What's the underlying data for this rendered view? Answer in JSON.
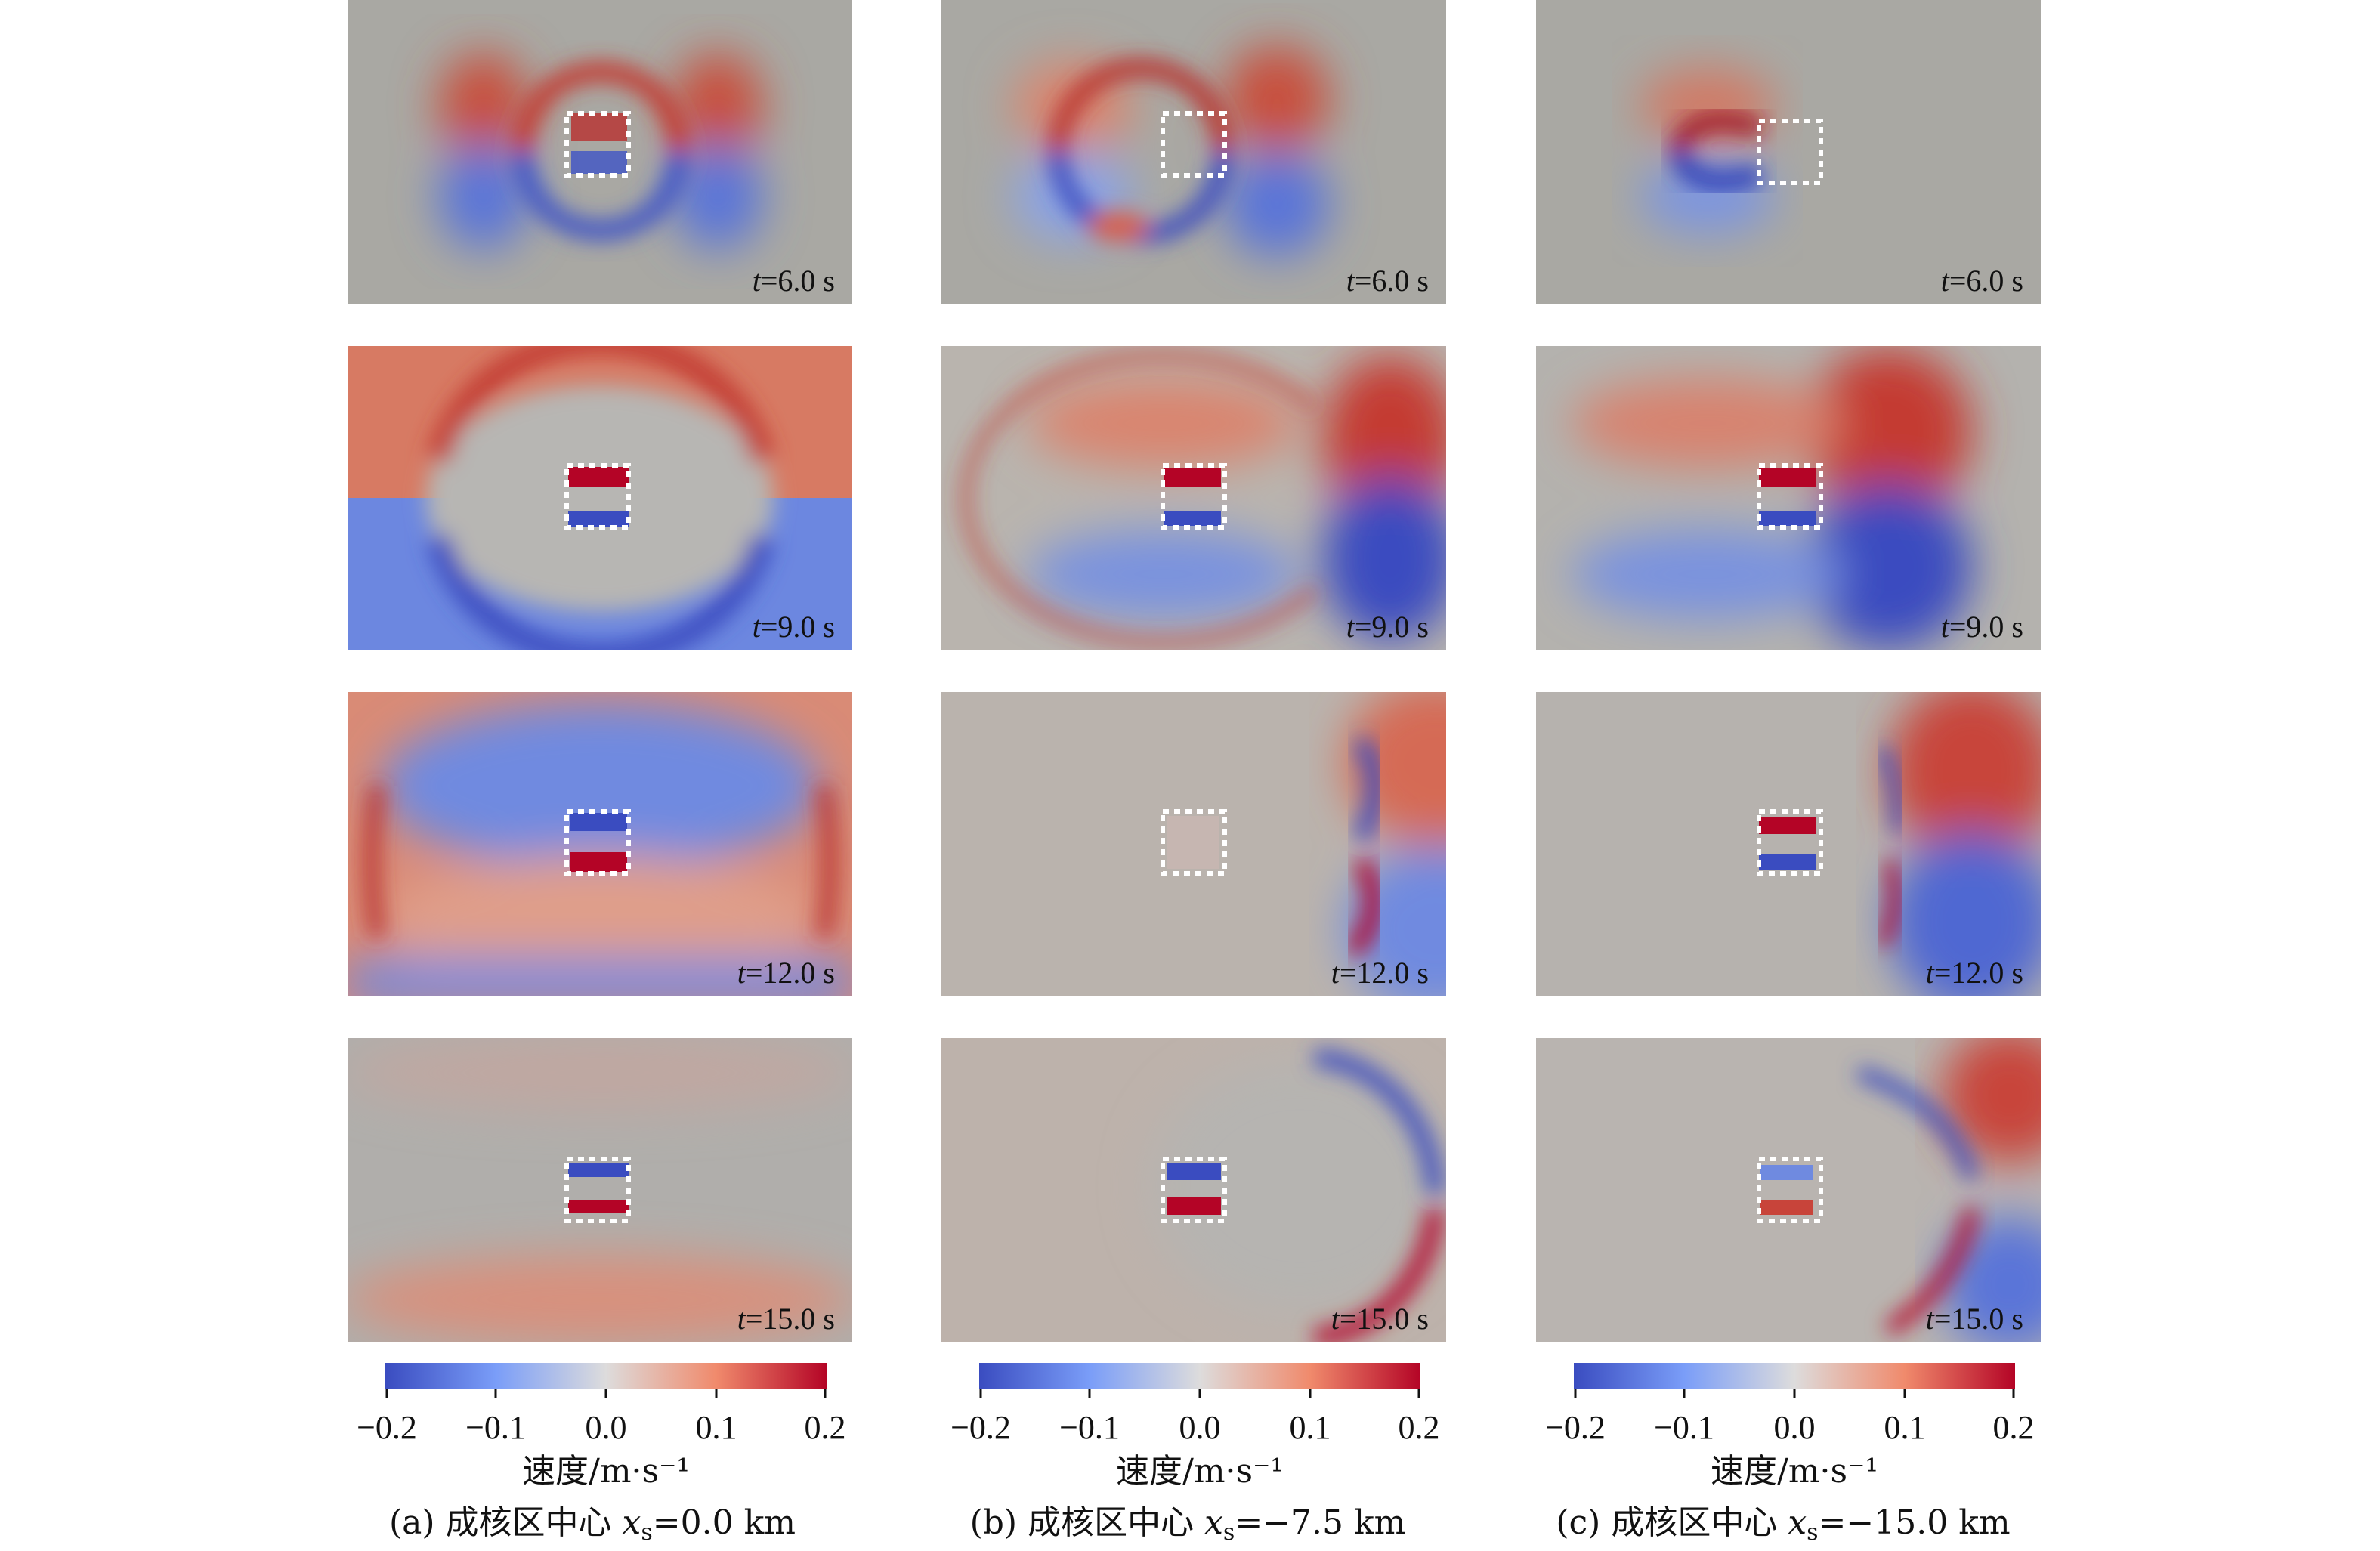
{
  "colors": {
    "blue": "#3a4cc0",
    "light_blue": "#aac7fd",
    "neutral": "#a9a8a3",
    "light_red": "#f5b69a",
    "red": "#b40426",
    "box": "#ffffff"
  },
  "rows": [
    {
      "label_var": "t",
      "label_value": "=6.0 s"
    },
    {
      "label_var": "t",
      "label_value": "=9.0 s"
    },
    {
      "label_var": "t",
      "label_value": "=12.0 s"
    },
    {
      "label_var": "t",
      "label_value": "=15.0 s"
    }
  ],
  "columns": [
    {
      "colorbar": {
        "ticks": [
          "−0.2",
          "−0.1",
          "0.0",
          "0.1",
          "0.2"
        ],
        "title": "速度/m·s⁻¹"
      },
      "caption": {
        "prefix": "(a) 成核区中心 ",
        "var": "x",
        "sub": "s",
        "value": "=0.0 km"
      }
    },
    {
      "colorbar": {
        "ticks": [
          "−0.2",
          "−0.1",
          "0.0",
          "0.1",
          "0.2"
        ],
        "title": "速度/m·s⁻¹"
      },
      "caption": {
        "prefix": "(b) 成核区中心 ",
        "var": "x",
        "sub": "s",
        "value": "=−7.5 km"
      }
    },
    {
      "colorbar": {
        "ticks": [
          "−0.2",
          "−0.1",
          "0.0",
          "0.1",
          "0.2"
        ],
        "title": "速度/m·s⁻¹"
      },
      "caption": {
        "prefix": "(c) 成核区中心 ",
        "var": "x",
        "sub": "s",
        "value": "=−15.0 km"
      }
    }
  ]
}
